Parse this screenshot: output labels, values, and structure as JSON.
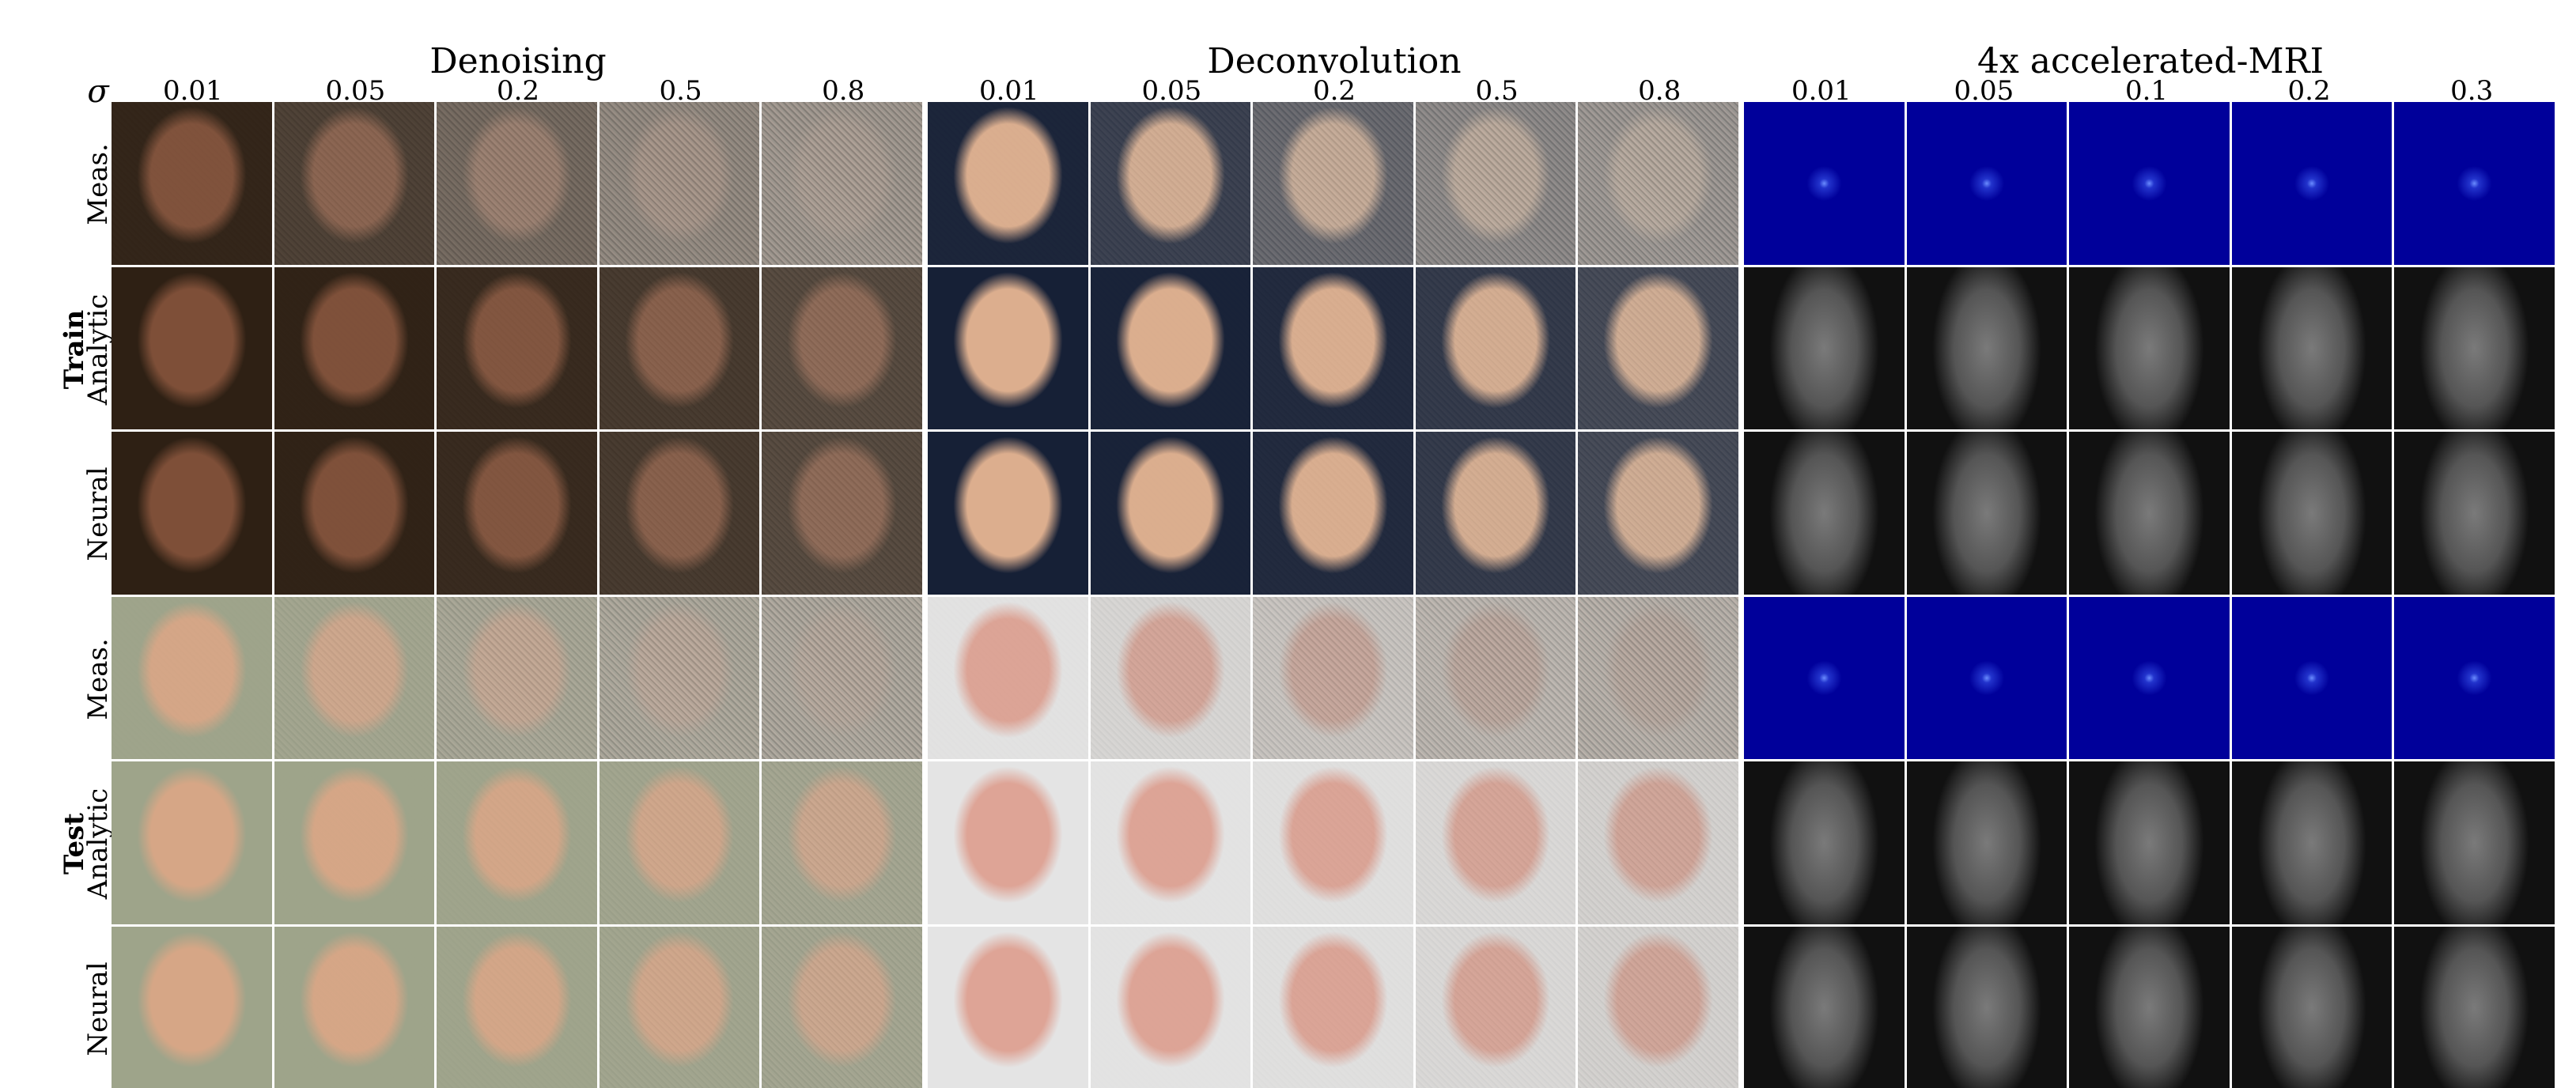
{
  "header": {
    "sigma_label": "σ",
    "tasks": [
      {
        "title": "Denoising",
        "sigmas": [
          0.01,
          0.05,
          0.2,
          0.5,
          0.8
        ]
      },
      {
        "title": "Deconvolution",
        "sigmas": [
          0.01,
          0.05,
          0.2,
          0.5,
          0.8
        ]
      },
      {
        "title": "4x accelerated-MRI",
        "sigmas": [
          0.01,
          0.05,
          0.1,
          0.2,
          0.3
        ]
      }
    ]
  },
  "groups": [
    {
      "label": "Train",
      "rows": [
        "Meas.",
        "Analytic",
        "Neural"
      ]
    },
    {
      "label": "Test",
      "rows": [
        "Meas.",
        "Analytic",
        "Neural"
      ]
    }
  ]
}
